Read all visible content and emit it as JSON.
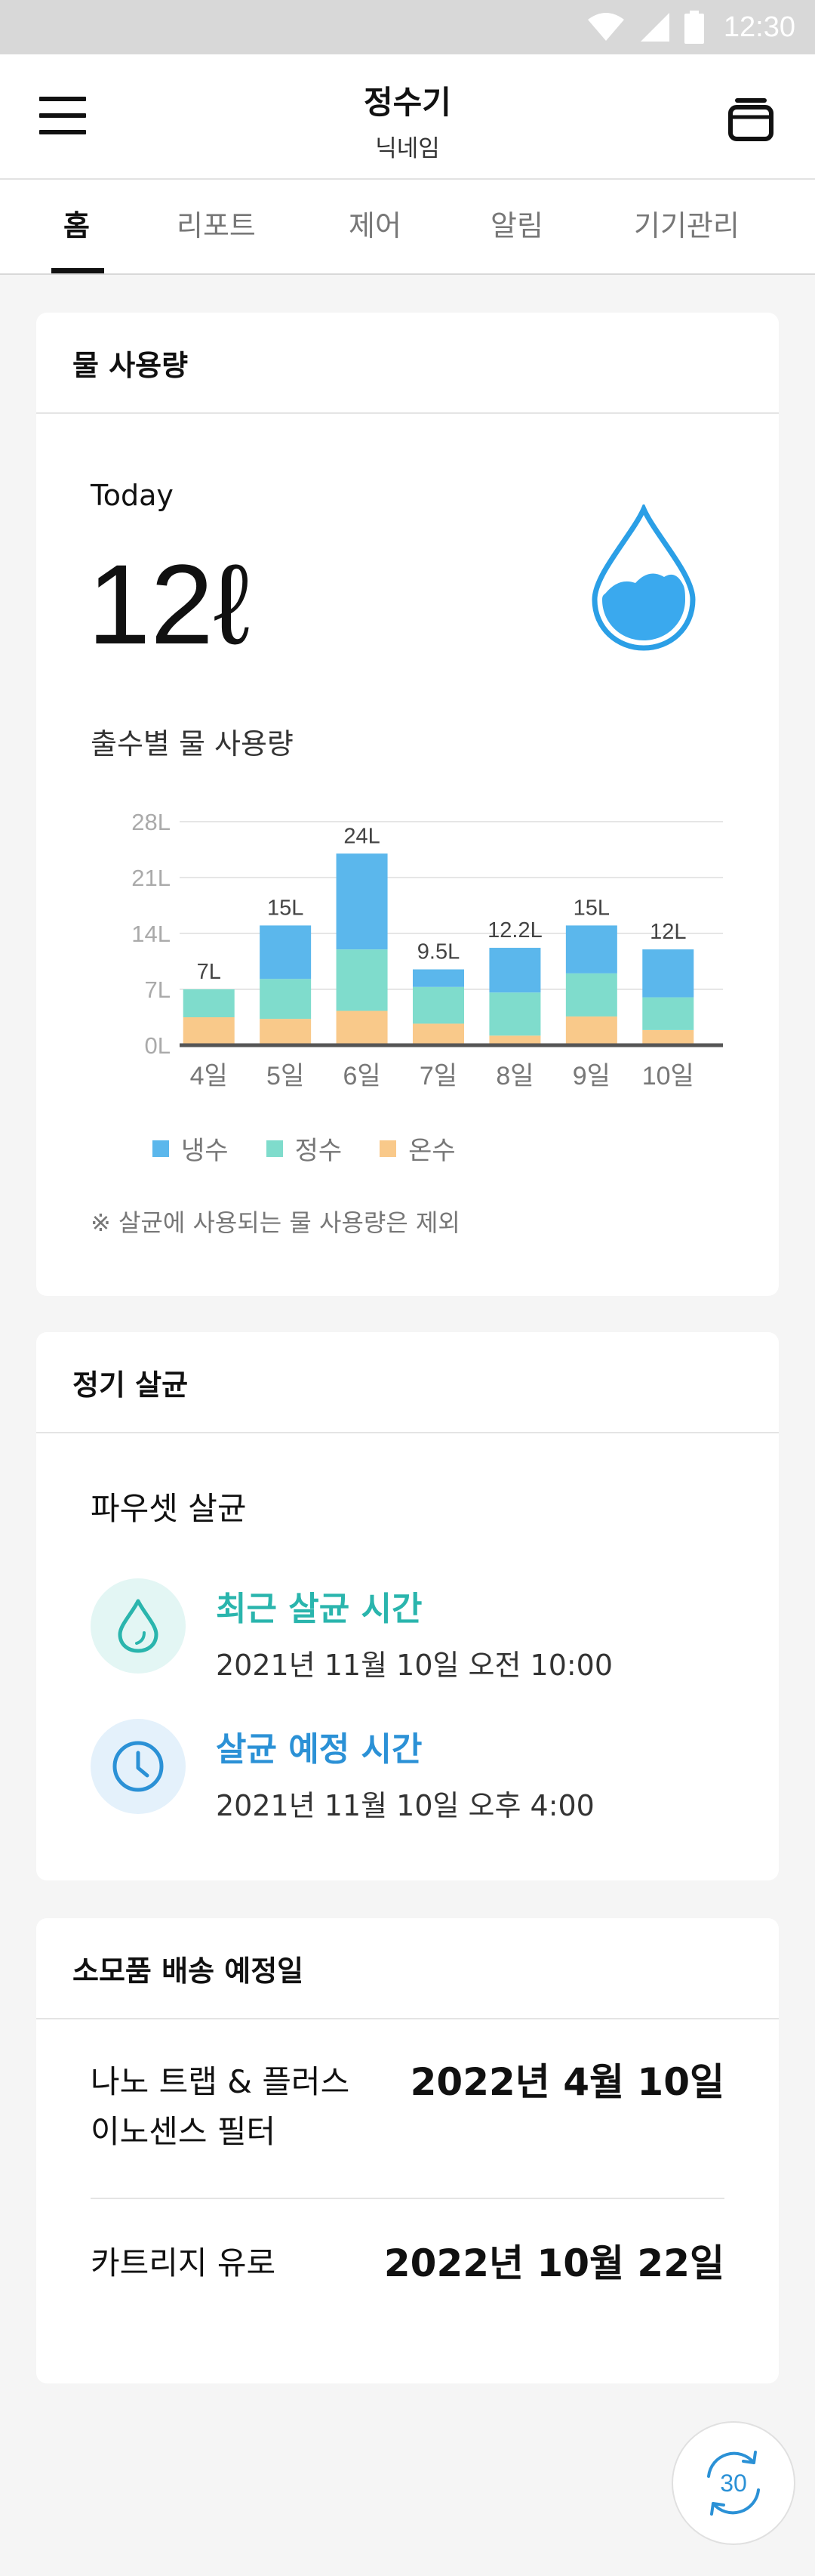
{
  "status_bar": {
    "time": "12:30"
  },
  "app_bar": {
    "title": "정수기",
    "subtitle": "닉네임"
  },
  "tabs": [
    {
      "label": "홈",
      "active": true
    },
    {
      "label": "리포트"
    },
    {
      "label": "제어"
    },
    {
      "label": "알림"
    },
    {
      "label": "기기관리"
    }
  ],
  "water_usage": {
    "header": "물 사용량",
    "today_label": "Today",
    "today_value": "12ℓ",
    "section_label": "출수별 물 사용량",
    "legend": [
      {
        "label": "냉수",
        "color": "#5bb7ec"
      },
      {
        "label": "정수",
        "color": "#7fdccc"
      },
      {
        "label": "온수",
        "color": "#f9c98a"
      }
    ],
    "note": "※ 살균에 사용되는 물 사용량은 제외"
  },
  "chart_data": {
    "type": "bar",
    "stacked": true,
    "categories": [
      "4일",
      "5일",
      "6일",
      "7일",
      "8일",
      "9일",
      "10일"
    ],
    "series": [
      {
        "name": "온수",
        "color": "#f9c98a",
        "values": [
          3.5,
          3.3,
          4.3,
          2.7,
          1.2,
          3.6,
          1.9
        ]
      },
      {
        "name": "정수",
        "color": "#7fdccc",
        "values": [
          3.5,
          5.0,
          7.7,
          4.6,
          5.4,
          5.4,
          4.1
        ]
      },
      {
        "name": "냉수",
        "color": "#5bb7ec",
        "values": [
          0.0,
          6.7,
          12.0,
          2.2,
          5.6,
          6.0,
          6.0
        ]
      }
    ],
    "totals_labels": [
      "7L",
      "15L",
      "24L",
      "9.5L",
      "12.2L",
      "15L",
      "12L"
    ],
    "y_ticks": [
      "0L",
      "7L",
      "14L",
      "21L",
      "28L"
    ],
    "ylim": [
      0,
      28
    ],
    "grid": true
  },
  "sterilization": {
    "header": "정기 살균",
    "title": "파우셋 살균",
    "recent_label": "최근 살균 시간",
    "recent_date": "2021년 11월 10일 오전 10:00",
    "scheduled_label": "살균 예정 시간",
    "scheduled_date": "2021년 11월 10일 오후 4:00"
  },
  "supplies": {
    "header": "소모품 배송 예정일",
    "items": [
      {
        "name_line1": "나노 트랩 & 플러스",
        "name_line2": "이노센스 필터",
        "date": "2022년 4월 10일"
      },
      {
        "name_line1": "카트리지 유로",
        "date": "2022년 10월 22일"
      }
    ]
  },
  "fab": {
    "label": "30"
  }
}
